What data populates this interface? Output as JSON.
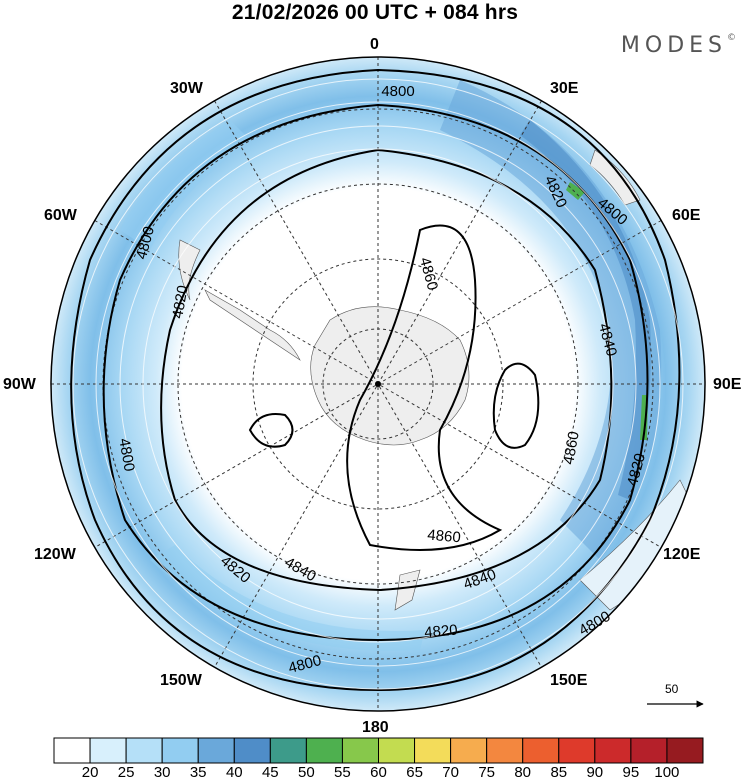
{
  "title": "21/02/2026  00 UTC  + 084 hrs",
  "brand": {
    "text": "MODES",
    "mark": "©"
  },
  "longitude_labels": {
    "top": "0",
    "ne": "30E",
    "ene": "60E",
    "east": "90E",
    "ese": "120E",
    "se": "150E",
    "bottom": "180",
    "sw": "150W",
    "wsw": "120W",
    "west": "90W",
    "wnw": "60W",
    "nw": "30W"
  },
  "contour_labels": [
    {
      "text": "4800",
      "rot": 0
    },
    {
      "text": "4820",
      "rot": 65
    },
    {
      "text": "4800",
      "rot": 40
    },
    {
      "text": "4800",
      "rot": -75
    },
    {
      "text": "4820",
      "rot": -80
    },
    {
      "text": "4860",
      "rot": 75
    },
    {
      "text": "4840",
      "rot": 75
    },
    {
      "text": "4820",
      "rot": -75
    },
    {
      "text": "4860",
      "rot": -80
    },
    {
      "text": "4800",
      "rot": 80
    },
    {
      "text": "4860",
      "rot": 5
    },
    {
      "text": "4840",
      "rot": -20
    },
    {
      "text": "4820",
      "rot": 40
    },
    {
      "text": "4840",
      "rot": 30
    },
    {
      "text": "4820",
      "rot": -5
    },
    {
      "text": "4800",
      "rot": -30
    },
    {
      "text": "4800",
      "rot": -15
    }
  ],
  "wind_reference": {
    "value": "50"
  },
  "colorbar": {
    "colors": [
      "#ffffff",
      "#d8f0fc",
      "#b5e0f8",
      "#92cdf1",
      "#6aa8da",
      "#4f8dc8",
      "#3d9b8a",
      "#4eb04f",
      "#87c84b",
      "#c3dc50",
      "#f3dc5a",
      "#f6ac4e",
      "#f3873f",
      "#ec5f2f",
      "#de3a2b",
      "#cc2a2b",
      "#b5202a",
      "#961b20"
    ],
    "ticks": [
      "20",
      "25",
      "30",
      "35",
      "40",
      "45",
      "50",
      "55",
      "60",
      "65",
      "70",
      "75",
      "80",
      "85",
      "90",
      "95",
      "100"
    ],
    "unit": "",
    "scale": "linear"
  }
}
